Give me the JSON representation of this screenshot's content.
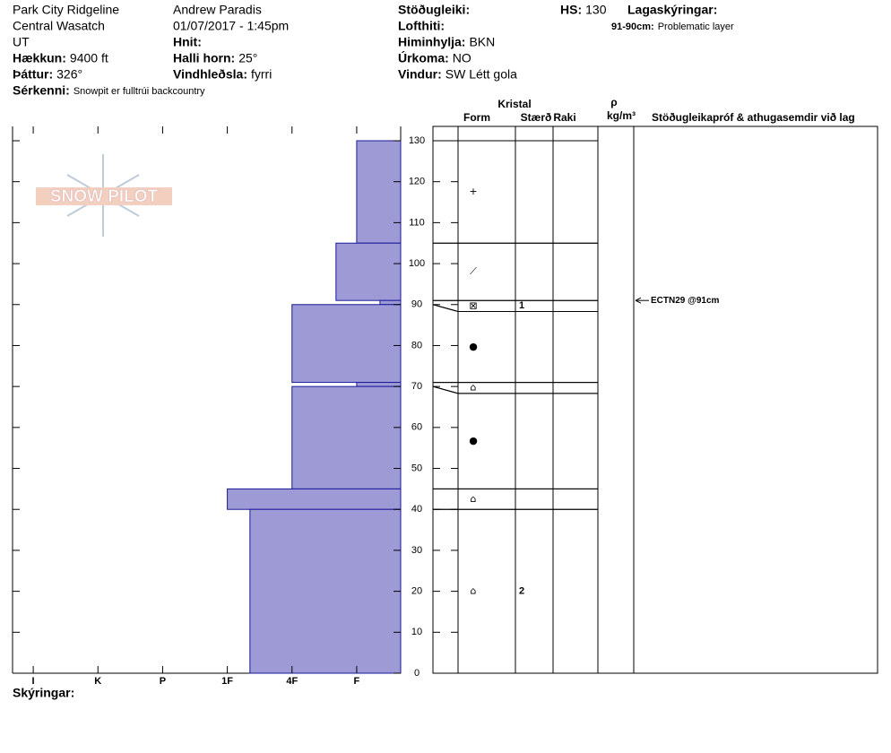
{
  "header": {
    "site": "Park City Ridgeline",
    "range": "Central Wasatch",
    "state": "UT",
    "observer": "Andrew Paradis",
    "datetime": "01/07/2017 - 1:45pm",
    "fields": [
      {
        "label": "Hækkun:",
        "value": "9400 ft"
      },
      {
        "label": "Þáttur:",
        "value": "326°"
      },
      {
        "label": "Sérkenni:",
        "value": "Snowpit er fulltrúi backcountry"
      },
      {
        "label": "Hnit:"
      },
      {
        "label": "Halli horn:",
        "value": "25°"
      },
      {
        "label": "Vindhleðsla:",
        "value": "fyrri"
      },
      {
        "label": "Stöðugleiki:"
      },
      {
        "label": "Lofthiti:"
      },
      {
        "label": "Himinhylja:",
        "value": "BKN"
      },
      {
        "label": "Úrkoma:",
        "value": "NO"
      },
      {
        "label": "Vindur:",
        "value": "SW Létt gola"
      },
      {
        "label": "HS:",
        "value": 130
      },
      {
        "label": "Lagaskýringar:"
      },
      {
        "label": "91-90cm:",
        "value": "Problematic layer"
      }
    ]
  },
  "logo": "SNOW PILOT",
  "columns": {
    "crystal": "Kristal",
    "form": "Form",
    "size": "Stærð",
    "moisture": "Raki",
    "rho": "ρ",
    "density_unit": "kg/m³",
    "comments": "Stöðugleikapróf & athugasemdir við lag"
  },
  "legend_title": "Skýringar:",
  "chart_data": {
    "type": "profile",
    "color": "#9e9ad6",
    "ylim": [
      0,
      133.5
    ],
    "yticks": [
      0,
      10,
      20,
      30,
      40,
      50,
      60,
      70,
      80,
      90,
      100,
      110,
      120,
      130
    ],
    "xlim": [
      0.32,
      6.32
    ],
    "xticks": [
      {
        "value": 6,
        "label": "I"
      },
      {
        "value": 5,
        "label": "K"
      },
      {
        "value": 4,
        "label": "P"
      },
      {
        "value": 3,
        "label": "1F"
      },
      {
        "value": 2,
        "label": "4F"
      },
      {
        "value": 1,
        "label": "F"
      }
    ],
    "layers": [
      {
        "top": 130,
        "bottom": 105,
        "hardness": 1,
        "form": "+"
      },
      {
        "top": 105,
        "bottom": 91,
        "hardness": 1.32,
        "form": "⟋"
      },
      {
        "top": 91,
        "bottom": 90,
        "hardness": 0.64,
        "form": "⊠",
        "size": 1
      },
      {
        "top": 90,
        "bottom": 71,
        "hardness": 2,
        "form": "●"
      },
      {
        "top": 71,
        "bottom": 70,
        "hardness": 1,
        "form": "⌂"
      },
      {
        "top": 70,
        "bottom": 45,
        "hardness": 2,
        "form": "●"
      },
      {
        "top": 45,
        "bottom": 40,
        "hardness": 3,
        "form": "⌂"
      },
      {
        "top": 40,
        "bottom": 0,
        "hardness": 2.65,
        "form": "⌂",
        "size": 2
      }
    ],
    "tests": [
      {
        "height": 91,
        "label": "ECTN29 @91cm"
      }
    ]
  }
}
